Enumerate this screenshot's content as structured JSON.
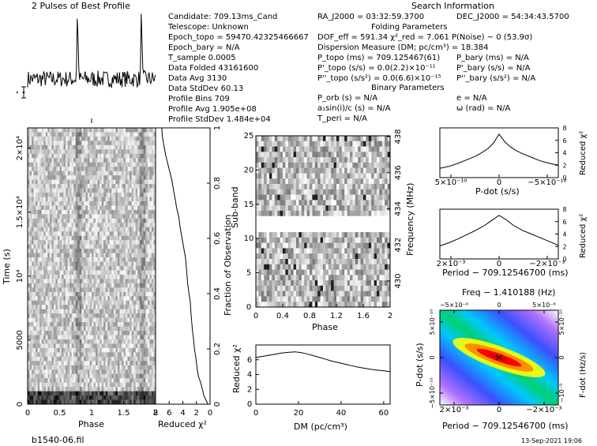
{
  "header": {
    "title": "2 Pulses of Best Profile",
    "search_title": "Search Information",
    "folding_title": "Folding Parameters",
    "binary_title": "Binary Parameters"
  },
  "info_left": [
    "Candidate:  709.13ms_Cand",
    "Telescope:   Unknown",
    "Epoch_topo = 59470.42325466667",
    "Epoch_bary = N/A",
    "T_sample        0.0005",
    "Data Folded     43161600",
    "Data Avg        3130",
    "Data StdDev     60.13",
    "Profile Bins    709",
    "Profile Avg     1.905e+08",
    "Profile StdDev  1.484e+04"
  ],
  "info_mid": [
    "RA_J2000 = 03:32:59.3700",
    "DOF_eff = 591.34  χ²_red = 7.061  P(Noise) ~ 0    (53.9σ)",
    "Dispersion Measure (DM; pc/cm³) = 18.384",
    "P_topo (ms) =  709.125467(61)",
    "P'_topo (s/s) = 0.0(2.2)×10⁻¹¹",
    "P''_topo (s/s²) = 0.0(6.6)×10⁻¹⁵",
    "P_orb (s) = N/A",
    "a₁sin(i)/c (s) = N/A",
    "T_peri = N/A"
  ],
  "info_right": [
    "DEC_J2000 = 54:34:43.5700",
    "P_bary (ms) = N/A",
    "P'_bary (s/s) = N/A",
    "P''_bary (s/s²) = N/A",
    "e = N/A",
    "ω (rad) = N/A"
  ],
  "footer": {
    "filename": "b1540-06.fil",
    "date": "13-Sep-2021 19:06"
  },
  "colors": {
    "fg": "#000000",
    "bg": "#ffffff",
    "map_low": "#ffffff",
    "map_high": "#ff0000",
    "map_mid": "#00c040"
  },
  "chart_data": [
    {
      "type": "line",
      "id": "profile",
      "title": "2 Pulses of Best Profile",
      "xlabel": "",
      "ylabel": "",
      "x_range": [
        0,
        2
      ],
      "peaks_at": [
        0.78,
        1.78
      ],
      "peak_height": 1.0,
      "noise_level": 0.12
    },
    {
      "type": "heatmap",
      "id": "time_phase",
      "xlabel": "Phase",
      "ylabel": "Time (s)",
      "x_ticks": [
        "0",
        "0.5",
        "1",
        "1.5",
        "2"
      ],
      "y_ticks": [
        "0",
        "5000",
        "10⁴",
        "1.5×10⁴",
        "2×10⁴"
      ],
      "x_range": [
        0,
        2
      ],
      "y_range": [
        0,
        21584
      ],
      "rows": 64,
      "cols": 64,
      "bright_region_fraction": 0.05
    },
    {
      "type": "line",
      "id": "time_chi2",
      "xlabel": "Reduced χ²",
      "ylabel": "Fraction of Observation",
      "x_ticks": [
        "8",
        "6",
        "4",
        "2",
        "0"
      ],
      "y_ticks": [
        "0",
        "0.2",
        "0.4",
        "0.6",
        "0.8",
        "1"
      ],
      "x_range": [
        8,
        0
      ],
      "y_range": [
        0,
        1
      ],
      "x": [
        7.1,
        7.0,
        6.8,
        6.5,
        6.2,
        5.9,
        5.6,
        5.4,
        5.1,
        4.9,
        4.6,
        4.4,
        4.1,
        3.9,
        3.6,
        3.5,
        3.4,
        3.3,
        3.1,
        2.9,
        2.8,
        2.7,
        2.6,
        2.4,
        2.3,
        2.1,
        1.9,
        1.7,
        1.4,
        1.2,
        0.9,
        0.3
      ],
      "y": [
        1.0,
        0.97,
        0.94,
        0.9,
        0.87,
        0.84,
        0.81,
        0.78,
        0.74,
        0.71,
        0.68,
        0.64,
        0.6,
        0.57,
        0.53,
        0.5,
        0.47,
        0.44,
        0.4,
        0.37,
        0.33,
        0.3,
        0.27,
        0.23,
        0.2,
        0.17,
        0.13,
        0.1,
        0.08,
        0.06,
        0.03,
        0.0
      ]
    },
    {
      "type": "heatmap",
      "id": "subband_phase",
      "xlabel": "Phase",
      "ylabel": "Sub-band",
      "y2label": "Frequency (MHz)",
      "x_ticks": [
        "0",
        "0.4",
        "0.8",
        "1.2",
        "1.6",
        "2"
      ],
      "y_ticks": [
        "0",
        "5",
        "10",
        "15",
        "20",
        "25"
      ],
      "y2_ticks": [
        "430",
        "432",
        "434",
        "436",
        "438"
      ],
      "x_range": [
        0,
        2
      ],
      "y_range": [
        0,
        25
      ],
      "masked_subbands": [
        11,
        12
      ]
    },
    {
      "type": "line",
      "id": "dm_chi2",
      "xlabel": "DM (pc/cm³)",
      "ylabel": "Reduced χ²",
      "x_ticks": [
        "0",
        "20",
        "40",
        "60"
      ],
      "y_ticks": [
        "0",
        "2",
        "4",
        "6"
      ],
      "x_range": [
        0,
        63
      ],
      "y_range": [
        0,
        8
      ],
      "x": [
        0,
        3,
        6,
        9,
        12,
        15,
        18.4,
        21,
        24,
        27,
        30,
        33,
        36,
        39,
        42,
        45,
        48,
        51,
        54,
        57,
        60,
        63
      ],
      "y": [
        6.3,
        6.45,
        6.6,
        6.75,
        6.9,
        7.0,
        7.06,
        6.98,
        6.8,
        6.55,
        6.3,
        6.05,
        5.8,
        5.6,
        5.4,
        5.2,
        5.0,
        4.85,
        4.7,
        4.6,
        4.5,
        4.4
      ]
    },
    {
      "type": "line",
      "id": "pdot_chi2",
      "xlabel": "P-dot (s/s)",
      "ylabel": "Reduced χ²",
      "x_ticks": [
        "5×10⁻¹⁰",
        "0",
        "−5×10⁻¹⁰"
      ],
      "y_ticks": [
        "0",
        "2",
        "4",
        "6",
        "8"
      ],
      "x_range": [
        -6.5e-10,
        6.5e-10
      ],
      "y_range": [
        0,
        8
      ],
      "x": [
        -6.5,
        -5.5,
        -4.5,
        -3.5,
        -2.5,
        -1.8,
        -1.2,
        -0.6,
        0,
        0.6,
        1.2,
        1.8,
        2.5,
        3.5,
        4.5,
        5.5,
        6.5
      ],
      "y": [
        2.0,
        2.3,
        2.7,
        3.3,
        3.9,
        4.4,
        5.0,
        5.8,
        7.0,
        5.6,
        4.7,
        4.1,
        3.5,
        2.9,
        2.3,
        1.8,
        1.5
      ]
    },
    {
      "type": "line",
      "id": "period_chi2",
      "xlabel": "Period − 709.12546700 (ms)",
      "ylabel": "Reduced χ²",
      "x_ticks": [
        "2×10⁻³",
        "0",
        "−2×10⁻³"
      ],
      "y_ticks": [
        "0",
        "2",
        "4",
        "6",
        "8"
      ],
      "x_range": [
        -0.0033,
        0.0033
      ],
      "y_range": [
        0,
        8
      ],
      "x": [
        -3.3,
        -2.8,
        -2.3,
        -1.8,
        -1.3,
        -0.8,
        -0.4,
        0,
        0.4,
        0.8,
        1.3,
        1.8,
        2.3,
        2.8,
        3.3
      ],
      "y": [
        2.2,
        2.8,
        3.4,
        4.0,
        4.6,
        5.4,
        6.3,
        7.0,
        6.2,
        5.4,
        4.6,
        3.9,
        3.2,
        2.6,
        2.1
      ]
    },
    {
      "type": "heatmap",
      "id": "p_pdot_plane",
      "xlabel": "Period − 709.12546700 (ms)",
      "ylabel": "P-dot (s/s)",
      "x2label": "Freq − 1.410188 (Hz)",
      "y2label": "F-dot (Hz/s)",
      "x_ticks": [
        "2×10⁻³",
        "0",
        "−2×10⁻³"
      ],
      "y_ticks": [
        "5×10⁻¹⁰",
        "0",
        "−5×10⁻¹⁰"
      ],
      "x2_ticks": [
        "−5×10⁻⁶",
        "0",
        "5×10⁻⁶"
      ],
      "y2_ticks": [
        "5×10⁻¹⁰",
        "0",
        "−10⁻⁹"
      ],
      "best": [
        0,
        0
      ],
      "colorscale": [
        "#ffffff",
        "#c080ff",
        "#4040ff",
        "#00c0ff",
        "#00d070",
        "#ffff00",
        "#ff8000",
        "#ff0000"
      ]
    }
  ]
}
